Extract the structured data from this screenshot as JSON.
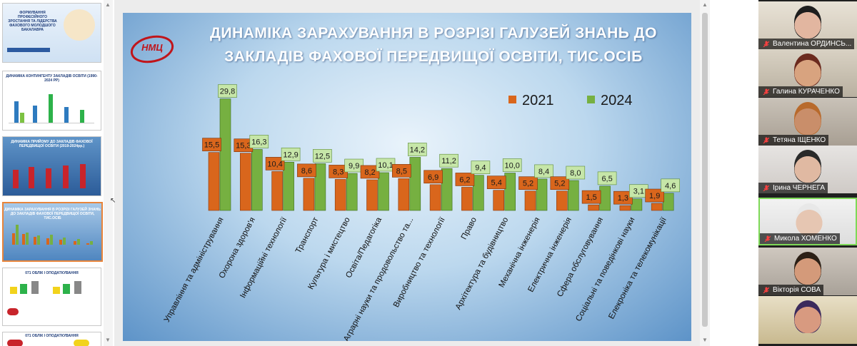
{
  "slide": {
    "title_line1": "ДИНАМІКА ЗАРАХУВАННЯ В РОЗРІЗІ ГАЛУЗЕЙ ЗНАНЬ ДО",
    "title_line2": "ЗАКЛАДІВ ФАХОВОЇ ПЕРЕДВИЩОЇ ОСВІТИ, ТИС.ОСІБ",
    "logo_text": "НМЦ"
  },
  "colors": {
    "bar_2021": "#d9661c",
    "bar_2024": "#76b041",
    "label_2021_bg": "#d9661c",
    "label_2024_bg": "#c6e6a8"
  },
  "chart_data": {
    "type": "bar",
    "title": "ДИНАМІКА ЗАРАХУВАННЯ В РОЗРІЗІ ГАЛУЗЕЙ ЗНАНЬ ДО ЗАКЛАДІВ ФАХОВОЇ ПЕРЕДВИЩОЇ ОСВІТИ, ТИС.ОСІБ",
    "categories": [
      "Управління та адміністрування",
      "Охорона здоров'я",
      "Інформаційні технології",
      "Транспорт",
      "Культура і мистецтво",
      "Освіта/Педагогіка",
      "Аграрні науки та продовольство та...",
      "Виробництво та технології",
      "Право",
      "Архітектура та будівництво",
      "Механічна інженерія",
      "Електрична інженерія",
      "Сфера обслуговування",
      "Соціальні та поведінкові науки",
      "Елекроніка та телекомунікації"
    ],
    "series": [
      {
        "name": "2021",
        "values": [
          15.5,
          15.3,
          10.4,
          8.6,
          8.3,
          8.2,
          8.5,
          6.9,
          6.2,
          5.4,
          5.2,
          5.2,
          1.5,
          1.3,
          1.9
        ]
      },
      {
        "name": "2024",
        "values": [
          29.8,
          16.3,
          12.9,
          12.5,
          9.9,
          10.1,
          14.2,
          11.2,
          9.4,
          10.0,
          8.4,
          8.0,
          6.5,
          3.1,
          4.6
        ]
      }
    ],
    "value_labels_2021": [
      "15,5",
      "15,3",
      "10,4",
      "8,6",
      "8,3",
      "8,2",
      "8,5",
      "6,9",
      "6,2",
      "5,4",
      "5,2",
      "5,2",
      "1,5",
      "1,3",
      "1,9"
    ],
    "value_labels_2024": [
      "29,8",
      "16,3",
      "12,9",
      "12,5",
      "9,9",
      "10,1",
      "14,2",
      "11,2",
      "9,4",
      "10,0",
      "8,4",
      "8,0",
      "6,5",
      "3,1",
      "4,6"
    ],
    "ylim": [
      0,
      32
    ],
    "grid": false,
    "legend": "top-right"
  },
  "legend": {
    "label_2021": "2021",
    "label_2024": "2024"
  },
  "thumbnails": [
    {
      "title": "ФОРМУВАННЯ ПРОФЕСІЙНОГО ЗРОСТАННЯ ТА ЛІДЕРСТВА ФАХОВОГО МОЛОДШОГО БАКАЛАВРА"
    },
    {
      "title": "ДИНАМІКА КОНТИНГЕНТУ ЗАКЛАДІВ ОСВІТИ (1990-2024 РР)"
    },
    {
      "title": "ДИНАМІКА ПРИЙОМУ ДО ЗАКЛАДІВ ФАХОВОЇ ПЕРЕДВИЩОЇ ОСВІТИ (2019-2024рр.)"
    },
    {
      "title": "ДИНАМІКА ЗАРАХУВАННЯ В РОЗРІЗІ ГАЛУЗЕЙ ЗНАНЬ ДО ЗАКЛАДІВ ФАХОВОЇ ПЕРЕДВИЩОЇ ОСВІТИ, ТИС.ОСІБ"
    },
    {
      "title": "071 ОБЛІК І ОПОДАТКУВАННЯ"
    },
    {
      "title": "071 ОБЛІК І ОПОДАТКУВАННЯ"
    }
  ],
  "participants": [
    {
      "name": "Валентина ОРДИНСЬ..."
    },
    {
      "name": "Галина КУРАЧЕНКО"
    },
    {
      "name": "Тетяна ІЩЕНКО"
    },
    {
      "name": "Ірина ЧЕРНЕГА"
    },
    {
      "name": "Микола ХОМЕНКО"
    },
    {
      "name": "Вікторія СОВА"
    },
    {
      "name": ""
    }
  ]
}
